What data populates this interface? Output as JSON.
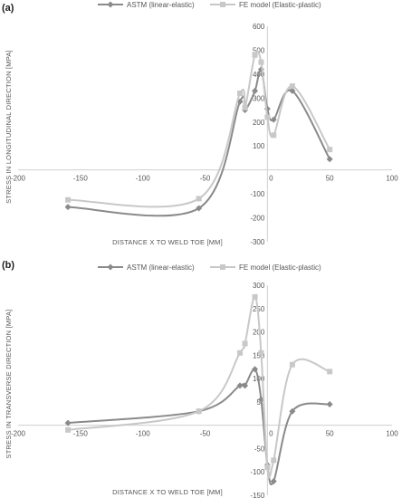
{
  "chart_data": [
    {
      "type": "line",
      "panel_label": "(a)",
      "title": "",
      "xlabel": "DISTANCE X TO WELD TOE [MM]",
      "ylabel": "STRESS IN LONGITUDINAL DIRECTION [MPA]",
      "xlim": [
        -200,
        100
      ],
      "ylim": [
        -300,
        600
      ],
      "x_ticks": [
        -200,
        -150,
        -100,
        -50,
        0,
        50,
        100
      ],
      "y_ticks": [
        -300,
        -200,
        -100,
        0,
        100,
        200,
        300,
        400,
        500,
        600
      ],
      "legend_position": "top",
      "grid": false,
      "series": [
        {
          "name": "ASTM (linear-elastic)",
          "color": "#8a8a8a",
          "marker": "diamond",
          "x": [
            -160,
            -55,
            -22,
            -18,
            -10,
            -5,
            0,
            5,
            20,
            50
          ],
          "y": [
            -155,
            -160,
            285,
            250,
            330,
            420,
            255,
            210,
            330,
            45
          ]
        },
        {
          "name": "FE model (Elastic-plastic)",
          "color": "#c8c8c8",
          "marker": "square",
          "x": [
            -160,
            -55,
            -22,
            -18,
            -10,
            -5,
            0,
            5,
            20,
            50
          ],
          "y": [
            -125,
            -120,
            320,
            260,
            480,
            450,
            220,
            145,
            350,
            85
          ]
        }
      ]
    },
    {
      "type": "line",
      "panel_label": "(b)",
      "title": "",
      "xlabel": "DISTANCE X TO WELD TOE [MM]",
      "ylabel": "STRESS IN TRANSVERSE DIRECTION [MPA]",
      "xlim": [
        -200,
        100
      ],
      "ylim": [
        -150,
        300
      ],
      "x_ticks": [
        -200,
        -150,
        -100,
        -50,
        0,
        50,
        100
      ],
      "y_ticks": [
        -150,
        -100,
        -50,
        0,
        50,
        100,
        150,
        200,
        250,
        300
      ],
      "legend_position": "top",
      "grid": false,
      "series": [
        {
          "name": "ASTM (linear-elastic)",
          "color": "#8a8a8a",
          "marker": "diamond",
          "x": [
            -160,
            -55,
            -22,
            -18,
            -10,
            -5,
            0,
            5,
            20,
            50
          ],
          "y": [
            5,
            30,
            85,
            85,
            120,
            55,
            -85,
            -120,
            30,
            45
          ]
        },
        {
          "name": "FE model (Elastic-plastic)",
          "color": "#c8c8c8",
          "marker": "square",
          "x": [
            -160,
            -55,
            -22,
            -18,
            -10,
            -5,
            0,
            5,
            20,
            50
          ],
          "y": [
            -10,
            30,
            155,
            175,
            275,
            155,
            -90,
            -75,
            130,
            115
          ]
        }
      ]
    }
  ]
}
